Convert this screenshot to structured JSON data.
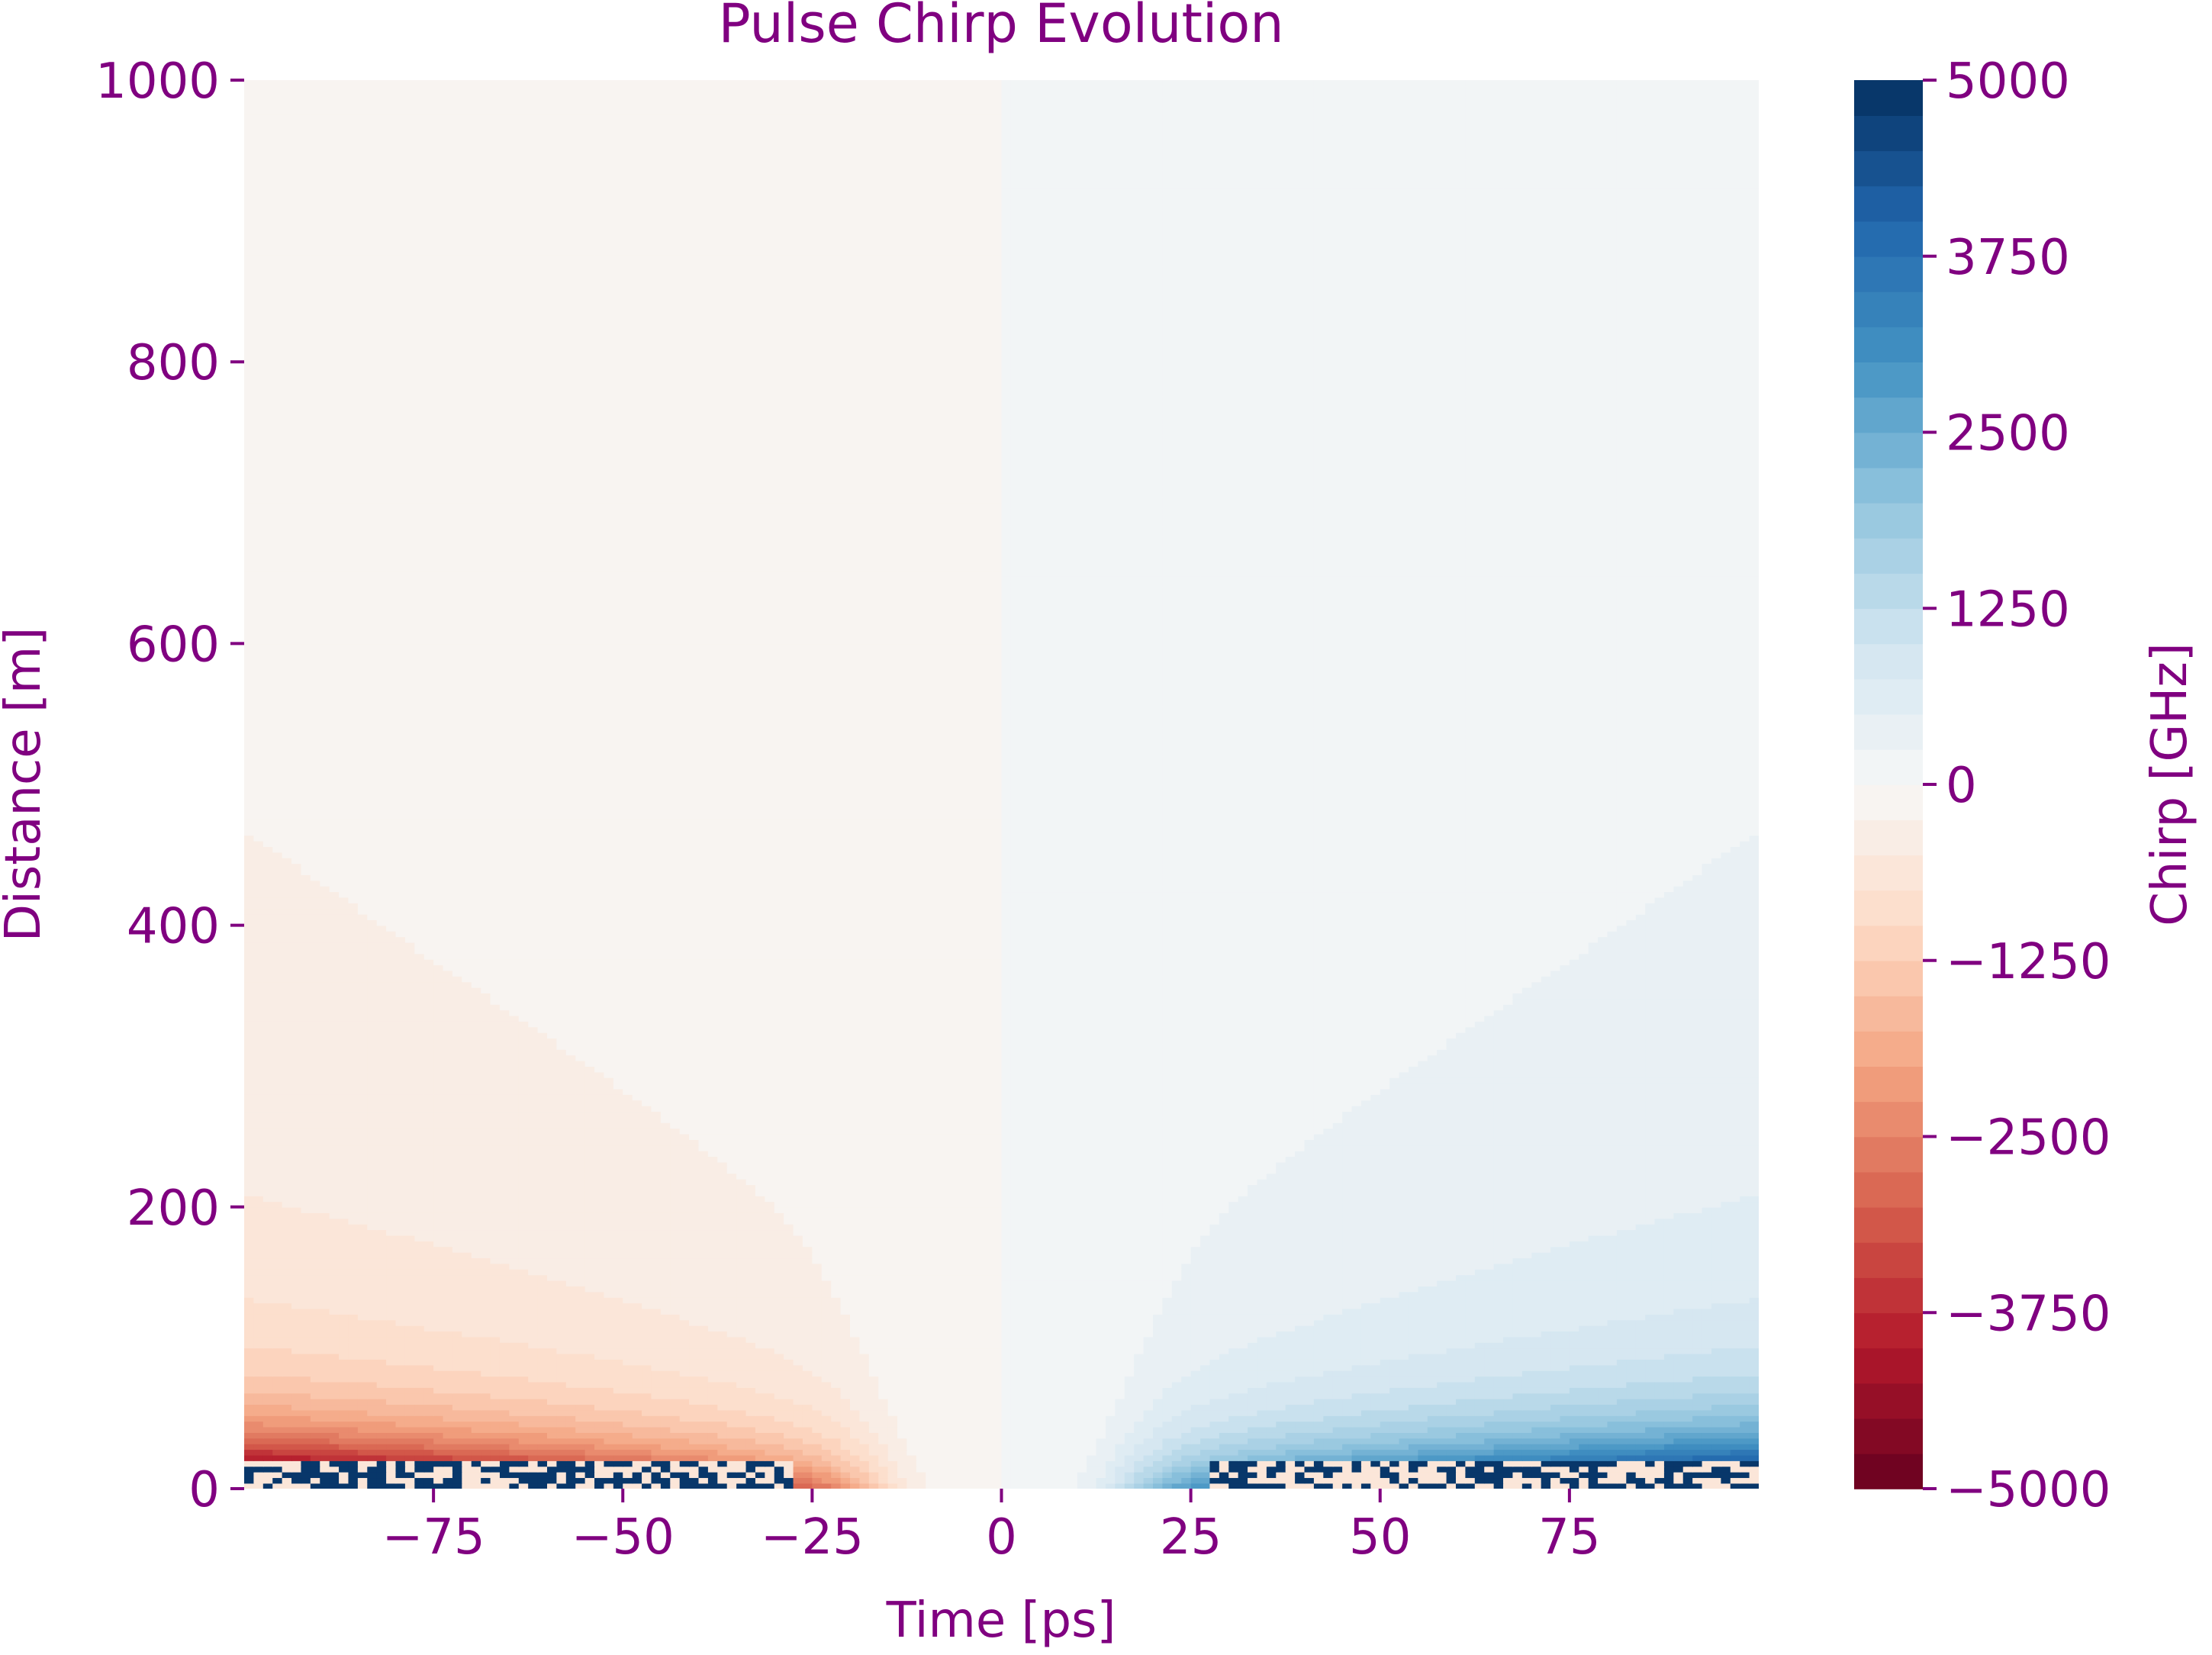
{
  "chart_data": {
    "type": "heatmap",
    "title": "Pulse Chirp Evolution",
    "xlabel": "Time [ps]",
    "ylabel": "Distance [m]",
    "xlim": [
      -100,
      100
    ],
    "ylim": [
      0,
      1000
    ],
    "x_ticks": [
      -75,
      -50,
      -25,
      0,
      25,
      50,
      75
    ],
    "x_tick_labels": [
      "−75",
      "−50",
      "−25",
      "0",
      "25",
      "50",
      "75"
    ],
    "y_ticks": [
      0,
      200,
      400,
      600,
      800,
      1000
    ],
    "y_tick_labels": [
      "0",
      "200",
      "400",
      "600",
      "800",
      "1000"
    ],
    "grid": false,
    "colorbar": {
      "label": "Chirp [GHz]",
      "range": [
        -5000,
        5000
      ],
      "levels": 40,
      "colormap": "RdBu",
      "ticks": [
        5000,
        3750,
        2500,
        1250,
        0,
        -1250,
        -2500,
        -3750,
        -5000
      ],
      "tick_labels": [
        "5000",
        "3750",
        "2500",
        "1250",
        "0",
        "−1250",
        "−2500",
        "−3750",
        "−5000"
      ]
    },
    "field_description": "chirp ~ sign(t) * magnitude decaying with distance; extreme (|chirp| up to 5000) near distance 0 at the pulse wings, near 0 for distance > 300",
    "text_color": "#800080"
  }
}
